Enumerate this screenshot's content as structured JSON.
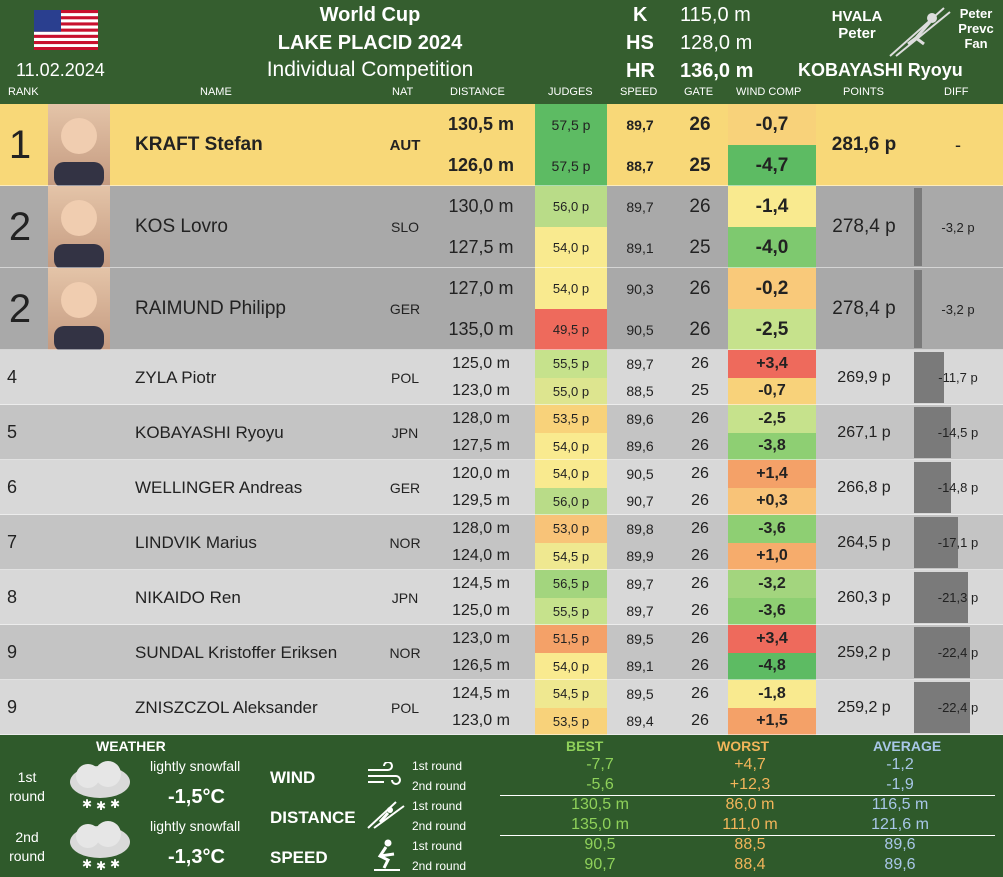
{
  "header": {
    "date": "11.02.2024",
    "title1": "World Cup",
    "title2": "LAKE PLACID 2024",
    "title3": "Individual Competition",
    "k_label": "K",
    "k_value": "115,0 m",
    "hs_label": "HS",
    "hs_value": "128,0 m",
    "hr_label": "HR",
    "hr_value": "136,0 m",
    "hr_holder": "KOBAYASHI Ryoyu",
    "logo_left_1": "HVALA",
    "logo_left_2": "Peter",
    "logo_right_1": "Peter",
    "logo_right_2": "Prevc",
    "logo_right_3": "Fan"
  },
  "columns": [
    "RANK",
    "NAME",
    "NAT",
    "DISTANCE",
    "JUDGES",
    "SPEED",
    "GATE",
    "WIND COMP",
    "POINTS",
    "DIFF"
  ],
  "athletes": [
    {
      "rank": "1",
      "name": "KRAFT Stefan",
      "nat": "AUT",
      "points": "281,6 p",
      "diff": "-",
      "diff_frac": 0,
      "r1": {
        "dist": "130,5 m",
        "judges": "57,5 p",
        "speed": "89,7",
        "gate": "26",
        "wind": "-0,7",
        "jc": "#5dbb63",
        "wc": "#f8d27a"
      },
      "r2": {
        "dist": "126,0 m",
        "judges": "57,5 p",
        "speed": "88,7",
        "gate": "25",
        "wind": "-4,7",
        "jc": "#5dbb63",
        "wc": "#5dbb63"
      }
    },
    {
      "rank": "2",
      "name": "KOS Lovro",
      "nat": "SLO",
      "points": "278,4 p",
      "diff": "-3,2 p",
      "diff_frac": 0.15,
      "r1": {
        "dist": "130,0 m",
        "judges": "56,0 p",
        "speed": "89,7",
        "gate": "26",
        "wind": "-1,4",
        "jc": "#b9dc88",
        "wc": "#f9ea8f"
      },
      "r2": {
        "dist": "127,5 m",
        "judges": "54,0 p",
        "speed": "89,1",
        "gate": "25",
        "wind": "-4,0",
        "jc": "#f9ea8f",
        "wc": "#7ec96f"
      }
    },
    {
      "rank": "2",
      "name": "RAIMUND Philipp",
      "nat": "GER",
      "points": "278,4 p",
      "diff": "-3,2 p",
      "diff_frac": 0.15,
      "r1": {
        "dist": "127,0 m",
        "judges": "54,0 p",
        "speed": "90,3",
        "gate": "26",
        "wind": "-0,2",
        "jc": "#f9ea8f",
        "wc": "#f9c97a"
      },
      "r2": {
        "dist": "135,0 m",
        "judges": "49,5 p",
        "speed": "90,5",
        "gate": "26",
        "wind": "-2,5",
        "jc": "#ee6a5c",
        "wc": "#c6e28c"
      }
    },
    {
      "rank": "4",
      "name": "ZYLA Piotr",
      "nat": "POL",
      "points": "269,9 p",
      "diff": "-11,7 p",
      "diff_frac": 0.53,
      "r1": {
        "dist": "125,0 m",
        "judges": "55,5 p",
        "speed": "89,7",
        "gate": "26",
        "wind": "+3,4",
        "jc": "#c6e28c",
        "wc": "#ee6a5c"
      },
      "r2": {
        "dist": "123,0 m",
        "judges": "55,0 p",
        "speed": "88,5",
        "gate": "25",
        "wind": "-0,7",
        "jc": "#dde58f",
        "wc": "#f8d27a"
      }
    },
    {
      "rank": "5",
      "name": "KOBAYASHI Ryoyu",
      "nat": "JPN",
      "points": "267,1 p",
      "diff": "-14,5 p",
      "diff_frac": 0.66,
      "r1": {
        "dist": "128,0 m",
        "judges": "53,5 p",
        "speed": "89,6",
        "gate": "26",
        "wind": "-2,5",
        "jc": "#f8d27a",
        "wc": "#c6e28c"
      },
      "r2": {
        "dist": "127,5 m",
        "judges": "54,0 p",
        "speed": "89,6",
        "gate": "26",
        "wind": "-3,8",
        "jc": "#f9ea8f",
        "wc": "#8ecf73"
      }
    },
    {
      "rank": "6",
      "name": "WELLINGER Andreas",
      "nat": "GER",
      "points": "266,8 p",
      "diff": "-14,8 p",
      "diff_frac": 0.67,
      "r1": {
        "dist": "120,0 m",
        "judges": "54,0 p",
        "speed": "90,5",
        "gate": "26",
        "wind": "+1,4",
        "jc": "#f9ea8f",
        "wc": "#f4a168"
      },
      "r2": {
        "dist": "129,5 m",
        "judges": "56,0 p",
        "speed": "90,7",
        "gate": "26",
        "wind": "+0,3",
        "jc": "#b9dc88",
        "wc": "#f8c378"
      }
    },
    {
      "rank": "7",
      "name": "LINDVIK Marius",
      "nat": "NOR",
      "points": "264,5 p",
      "diff": "-17,1 p",
      "diff_frac": 0.78,
      "r1": {
        "dist": "128,0 m",
        "judges": "53,0 p",
        "speed": "89,8",
        "gate": "26",
        "wind": "-3,6",
        "jc": "#f8c378",
        "wc": "#8ecf73"
      },
      "r2": {
        "dist": "124,0 m",
        "judges": "54,5 p",
        "speed": "89,9",
        "gate": "26",
        "wind": "+1,0",
        "jc": "#efe890",
        "wc": "#f6ac6c"
      }
    },
    {
      "rank": "8",
      "name": "NIKAIDO Ren",
      "nat": "JPN",
      "points": "260,3 p",
      "diff": "-21,3 p",
      "diff_frac": 0.97,
      "r1": {
        "dist": "124,5 m",
        "judges": "56,5 p",
        "speed": "89,7",
        "gate": "26",
        "wind": "-3,2",
        "jc": "#a3d57e",
        "wc": "#a3d57e"
      },
      "r2": {
        "dist": "125,0 m",
        "judges": "55,5 p",
        "speed": "89,7",
        "gate": "26",
        "wind": "-3,6",
        "jc": "#c6e28c",
        "wc": "#8ecf73"
      }
    },
    {
      "rank": "9",
      "name": "SUNDAL Kristoffer Eriksen",
      "nat": "NOR",
      "points": "259,2 p",
      "diff": "-22,4 p",
      "diff_frac": 1.0,
      "r1": {
        "dist": "123,0 m",
        "judges": "51,5 p",
        "speed": "89,5",
        "gate": "26",
        "wind": "+3,4",
        "jc": "#f4a168",
        "wc": "#ee6a5c"
      },
      "r2": {
        "dist": "126,5 m",
        "judges": "54,0 p",
        "speed": "89,1",
        "gate": "26",
        "wind": "-4,8",
        "jc": "#f9ea8f",
        "wc": "#5dbb63"
      }
    },
    {
      "rank": "9",
      "name": "ZNISZCZOL Aleksander",
      "nat": "POL",
      "points": "259,2 p",
      "diff": "-22,4 p",
      "diff_frac": 1.0,
      "r1": {
        "dist": "124,5 m",
        "judges": "54,5 p",
        "speed": "89,5",
        "gate": "26",
        "wind": "-1,8",
        "jc": "#efe890",
        "wc": "#f9ea8f"
      },
      "r2": {
        "dist": "123,0 m",
        "judges": "53,5 p",
        "speed": "89,4",
        "gate": "26",
        "wind": "+1,5",
        "jc": "#f8d27a",
        "wc": "#f4a168"
      }
    }
  ],
  "weather": {
    "title": "WEATHER",
    "round1_label": "1st round",
    "round1_desc": "lightly snowfall",
    "round1_temp": "-1,5°C",
    "round2_label": "2nd round",
    "round2_desc": "lightly snowfall",
    "round2_temp": "-1,3°C"
  },
  "stats": {
    "best_label": "BEST",
    "worst_label": "WORST",
    "avg_label": "AVERAGE",
    "round1": "1st round",
    "round2": "2nd round",
    "rows": [
      {
        "label": "WIND",
        "r1": [
          "-7,7",
          "+4,7",
          "-1,2"
        ],
        "r2": [
          "-5,6",
          "+12,3",
          "-1,9"
        ]
      },
      {
        "label": "DISTANCE",
        "r1": [
          "130,5 m",
          "86,0 m",
          "116,5 m"
        ],
        "r2": [
          "135,0 m",
          "111,0 m",
          "121,6 m"
        ]
      },
      {
        "label": "SPEED",
        "r1": [
          "90,5",
          "88,5",
          "89,6"
        ],
        "r2": [
          "90,7",
          "88,4",
          "89,6"
        ]
      }
    ]
  },
  "colors": {
    "best": "#8fd15a",
    "worst": "#f2b55a",
    "avg": "#a9c7e8",
    "leader_bg": "#f8d878",
    "podium_bg": "#a9a9a9"
  }
}
